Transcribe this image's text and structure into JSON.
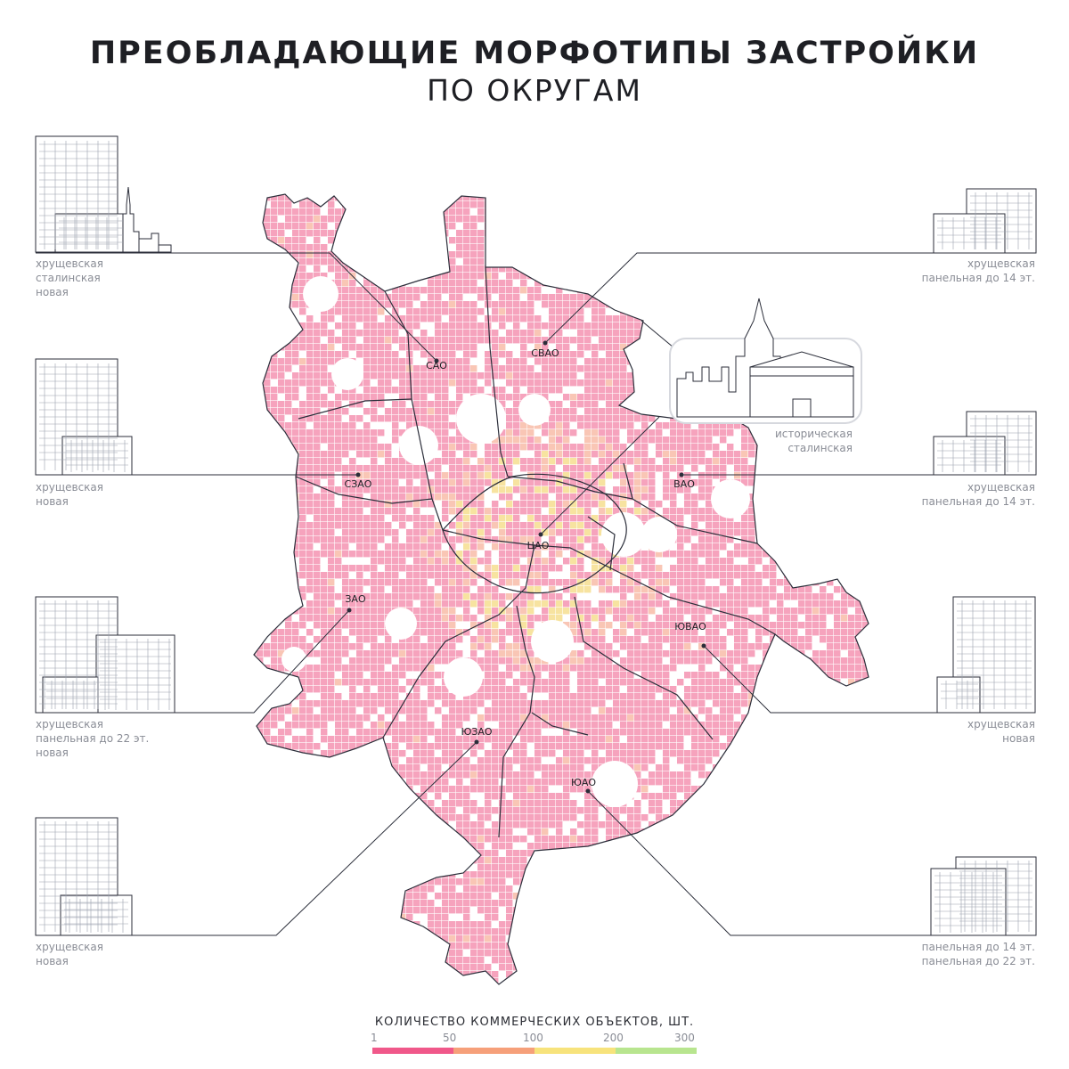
{
  "title": "ПРЕОБЛАДАЮЩИЕ МОРФОТИПЫ ЗАСТРОЙКИ",
  "subtitle": "ПО ОКРУГАМ",
  "districts": [
    {
      "name": "САО"
    },
    {
      "name": "СВАО"
    },
    {
      "name": "СЗАО"
    },
    {
      "name": "ВАО"
    },
    {
      "name": "ЦАО"
    },
    {
      "name": "ЗАО"
    },
    {
      "name": "ЮВАО"
    },
    {
      "name": "ЮЗАО"
    },
    {
      "name": "ЮАО"
    }
  ],
  "captions": {
    "sao": [
      "хрущевская",
      "сталинская",
      "новая"
    ],
    "svao": [
      "хрущевская",
      "панельная до 14 эт."
    ],
    "cao": [
      "историческая",
      "сталинская"
    ],
    "szao": [
      "хрущевская",
      "новая"
    ],
    "vao": [
      "хрущевская",
      "панельная до 14 эт."
    ],
    "zao": [
      "хрущевская",
      "панельная до 22 эт.",
      "новая"
    ],
    "yuvao": [
      "хрущевская",
      "новая"
    ],
    "yuzao": [
      "хрущевская",
      "новая"
    ],
    "yuao": [
      "панельная до 14 эт.",
      "панельная до 22 эт."
    ]
  },
  "legend": {
    "title": "КОЛИЧЕСТВО КОММЕРЧЕСКИХ ОБЪЕКТОВ, ШТ.",
    "ticks": [
      "1",
      "50",
      "100",
      "200",
      "300"
    ],
    "colors": [
      "#f0588a",
      "#f6a07a",
      "#f7e37c",
      "#b8e58f",
      "#7ce08c"
    ]
  },
  "colors": {
    "base_cell": "#f6a3bd",
    "line": "#2b2e3a",
    "text": "#1e1f24"
  }
}
